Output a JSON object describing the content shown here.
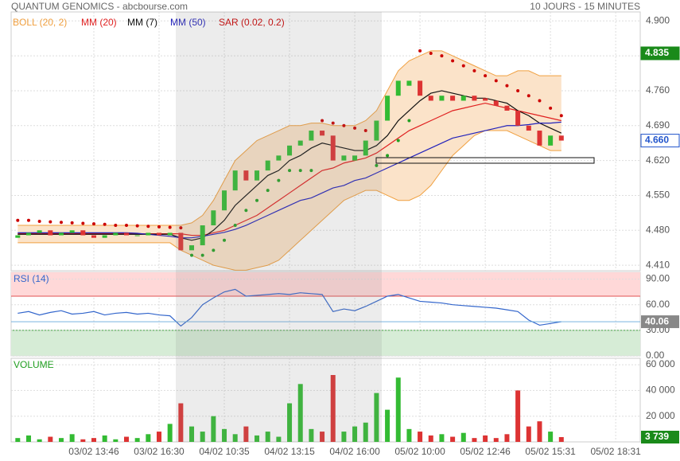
{
  "header": {
    "title": "QUANTUM GENOMICS - abcbourse.com",
    "period": "10 JOURS - 15 MINUTES"
  },
  "chart_data": [
    {
      "type": "candlestick",
      "up_color": "#33bb33",
      "down_color": "#dd3333",
      "open": [
        4.465,
        4.47,
        4.475,
        4.48,
        4.47,
        4.475,
        4.48,
        4.47,
        4.465,
        4.47,
        4.475,
        4.47,
        4.47,
        4.475,
        4.47,
        4.475,
        4.44,
        4.45,
        4.49,
        4.52,
        4.56,
        4.6,
        4.58,
        4.6,
        4.62,
        4.63,
        4.65,
        4.66,
        4.68,
        4.67,
        4.62,
        4.62,
        4.63,
        4.66,
        4.7,
        4.75,
        4.77,
        4.78,
        4.75,
        4.74,
        4.75,
        4.74,
        4.75,
        4.745,
        4.74,
        4.73,
        4.72,
        4.69,
        4.68,
        4.65,
        4.67,
        null,
        null,
        null,
        null,
        null,
        null
      ],
      "close": [
        4.47,
        4.475,
        4.48,
        4.47,
        4.475,
        4.48,
        4.47,
        4.465,
        4.47,
        4.475,
        4.47,
        4.47,
        4.475,
        4.47,
        4.475,
        4.44,
        4.45,
        4.49,
        4.52,
        4.56,
        4.6,
        4.58,
        4.6,
        4.62,
        4.63,
        4.65,
        4.66,
        4.68,
        4.67,
        4.62,
        4.63,
        4.63,
        4.66,
        4.7,
        4.75,
        4.78,
        4.78,
        4.75,
        4.74,
        4.75,
        4.74,
        4.75,
        4.74,
        4.74,
        4.73,
        4.72,
        4.69,
        4.68,
        4.65,
        4.67,
        4.66,
        null,
        null,
        null,
        null,
        null,
        null
      ],
      "bands": {
        "name": "BOLL (20, 2)",
        "color": "#f0a040",
        "fill": "#fbe3c9",
        "upper": [
          4.49,
          4.49,
          4.49,
          4.49,
          4.49,
          4.49,
          4.49,
          4.49,
          4.49,
          4.49,
          4.49,
          4.49,
          4.49,
          4.49,
          4.49,
          4.49,
          4.495,
          4.51,
          4.54,
          4.58,
          4.62,
          4.64,
          4.66,
          4.67,
          4.68,
          4.69,
          4.69,
          4.695,
          4.695,
          4.69,
          4.69,
          4.69,
          4.7,
          4.72,
          4.76,
          4.8,
          4.82,
          4.83,
          4.84,
          4.84,
          4.83,
          4.82,
          4.81,
          4.8,
          4.79,
          4.79,
          4.8,
          4.8,
          4.79,
          4.79,
          4.79,
          null,
          null,
          null,
          null,
          null,
          null
        ],
        "lower": [
          4.455,
          4.455,
          4.455,
          4.455,
          4.455,
          4.455,
          4.455,
          4.455,
          4.455,
          4.455,
          4.455,
          4.455,
          4.455,
          4.455,
          4.455,
          4.44,
          4.43,
          4.42,
          4.41,
          4.405,
          4.4,
          4.4,
          4.405,
          4.41,
          4.42,
          4.44,
          4.46,
          4.48,
          4.5,
          4.52,
          4.54,
          4.55,
          4.56,
          4.56,
          4.55,
          4.54,
          4.54,
          4.55,
          4.57,
          4.6,
          4.63,
          4.65,
          4.67,
          4.68,
          4.68,
          4.68,
          4.67,
          4.66,
          4.65,
          4.64,
          4.64,
          null,
          null,
          null,
          null,
          null,
          null
        ]
      },
      "series": [
        {
          "name": "MM (20)",
          "color": "#e02020",
          "values": [
            4.473,
            4.473,
            4.473,
            4.473,
            4.473,
            4.473,
            4.473,
            4.473,
            4.473,
            4.473,
            4.473,
            4.473,
            4.473,
            4.473,
            4.473,
            4.473,
            4.47,
            4.47,
            4.475,
            4.48,
            4.49,
            4.5,
            4.51,
            4.525,
            4.54,
            4.555,
            4.57,
            4.585,
            4.6,
            4.605,
            4.615,
            4.62,
            4.625,
            4.635,
            4.65,
            4.665,
            4.68,
            4.69,
            4.7,
            4.71,
            4.72,
            4.725,
            4.73,
            4.735,
            4.73,
            4.725,
            4.72,
            4.715,
            4.71,
            4.705,
            4.7,
            null,
            null,
            null,
            null,
            null,
            null
          ]
        },
        {
          "name": "MM (7)",
          "color": "#111111",
          "values": [
            4.472,
            4.472,
            4.472,
            4.472,
            4.472,
            4.472,
            4.472,
            4.472,
            4.472,
            4.472,
            4.472,
            4.472,
            4.472,
            4.472,
            4.472,
            4.465,
            4.46,
            4.465,
            4.48,
            4.5,
            4.53,
            4.55,
            4.57,
            4.59,
            4.6,
            4.62,
            4.63,
            4.645,
            4.655,
            4.65,
            4.645,
            4.64,
            4.64,
            4.65,
            4.67,
            4.7,
            4.72,
            4.74,
            4.755,
            4.76,
            4.755,
            4.75,
            4.745,
            4.745,
            4.74,
            4.735,
            4.72,
            4.71,
            4.695,
            4.685,
            4.675,
            null,
            null,
            null,
            null,
            null,
            null
          ]
        },
        {
          "name": "MM (50)",
          "color": "#2222bb",
          "values": [
            4.475,
            4.475,
            4.475,
            4.475,
            4.475,
            4.475,
            4.475,
            4.475,
            4.475,
            4.475,
            4.475,
            4.474,
            4.472,
            4.47,
            4.468,
            4.465,
            4.465,
            4.468,
            4.472,
            4.476,
            4.482,
            4.49,
            4.5,
            4.51,
            4.52,
            4.53,
            4.54,
            4.545,
            4.555,
            4.565,
            4.57,
            4.58,
            4.585,
            4.595,
            4.605,
            4.615,
            4.625,
            4.635,
            4.645,
            4.655,
            4.665,
            4.67,
            4.675,
            4.68,
            4.685,
            4.69,
            4.69,
            4.692,
            4.695,
            4.695,
            4.697,
            null,
            null,
            null,
            null,
            null,
            null
          ]
        }
      ],
      "sar": {
        "name": "SAR (0.02, 0.2)",
        "color": "#cc0000",
        "below_color": "#22a022",
        "values": [
          4.5,
          4.5,
          4.498,
          4.497,
          4.496,
          4.495,
          4.494,
          4.493,
          4.492,
          4.49,
          4.49,
          4.489,
          4.488,
          4.487,
          4.486,
          4.485,
          4.43,
          4.43,
          4.44,
          4.46,
          4.49,
          4.52,
          4.54,
          4.56,
          4.58,
          4.6,
          4.6,
          4.6,
          4.7,
          4.695,
          4.69,
          4.685,
          4.68,
          4.61,
          4.63,
          4.66,
          4.7,
          4.84,
          4.835,
          4.83,
          4.82,
          4.81,
          4.8,
          4.79,
          4.78,
          4.77,
          4.76,
          4.75,
          4.74,
          4.725,
          4.71,
          null,
          null,
          null,
          null,
          null,
          null
        ]
      },
      "tags": [
        {
          "value": 4.835,
          "label": "4.835",
          "color": "#1a8a1a"
        },
        {
          "value": 4.66,
          "label": "4.660",
          "color": "#2255cc"
        }
      ],
      "ylim": [
        4.399,
        4.918
      ],
      "yticks": [
        {
          "value": 4.41,
          "label": "4.410"
        },
        {
          "value": 4.48,
          "label": "4.480"
        },
        {
          "value": 4.55,
          "label": "4.550"
        },
        {
          "value": 4.62,
          "label": "4.620"
        },
        {
          "value": 4.69,
          "label": "4.690"
        },
        {
          "value": 4.76,
          "label": "4.760"
        },
        {
          "value": 4.83,
          "label": "4.830"
        },
        {
          "value": 4.9,
          "label": "4.900"
        }
      ],
      "grid": true
    },
    {
      "type": "line",
      "title": "RSI (14)",
      "color": "#3366cc",
      "values": [
        50,
        52,
        48,
        51,
        53,
        49,
        50,
        52,
        48,
        50,
        51,
        49,
        50,
        48,
        47,
        35,
        45,
        60,
        68,
        75,
        78,
        70,
        71,
        72,
        73,
        72,
        74,
        73,
        72,
        52,
        55,
        53,
        58,
        64,
        70,
        72,
        68,
        64,
        63,
        62,
        60,
        59,
        58,
        57,
        56,
        54,
        52,
        42,
        36,
        38,
        40.06,
        null,
        null,
        null,
        null,
        null,
        null
      ],
      "overbought": 70,
      "oversold": 30,
      "overbought_color": "#ffd8d8",
      "oversold_color": "#d6ecd6",
      "ylim": [
        0,
        98
      ],
      "yticks": [
        {
          "value": 0,
          "label": "0.00"
        },
        {
          "value": 30,
          "label": "30.00"
        },
        {
          "value": 60,
          "label": "60.00"
        },
        {
          "value": 90,
          "label": "90.00"
        }
      ],
      "grid": true
    },
    {
      "type": "bar",
      "title": "VOLUME",
      "values": [
        3000,
        5000,
        2000,
        4000,
        3000,
        6000,
        2000,
        3000,
        5000,
        2000,
        4000,
        3000,
        6000,
        8000,
        14000,
        30000,
        12000,
        8000,
        20000,
        10000,
        6000,
        12000,
        5000,
        8000,
        4000,
        30000,
        45000,
        10000,
        8000,
        52000,
        8000,
        12000,
        15000,
        38000,
        25000,
        50000,
        10000,
        8000,
        5000,
        6000,
        4000,
        7000,
        3000,
        5000,
        3000,
        6000,
        40000,
        12000,
        16000,
        8000,
        3739,
        null,
        null,
        null,
        null,
        null,
        null
      ],
      "last_value_label": "3 739",
      "categories": [
        null,
        null,
        null,
        null,
        null,
        null,
        null,
        "03/02 13:46",
        null,
        null,
        null,
        null,
        null,
        "03/02 16:30",
        null,
        null,
        null,
        null,
        null,
        "04/02 10:35",
        null,
        null,
        null,
        null,
        null,
        "04/02 13:15",
        null,
        null,
        null,
        null,
        null,
        "04/02 16:00",
        null,
        null,
        null,
        null,
        null,
        "05/02 10:00",
        null,
        null,
        null,
        null,
        null,
        "05/02 12:46",
        null,
        null,
        null,
        null,
        null,
        "05/02 15:31",
        null,
        null,
        null,
        null,
        null,
        "05/02 18:31",
        null
      ],
      "ylim": [
        0,
        65000
      ],
      "yticks": [
        {
          "value": 20000,
          "label": "20 000"
        },
        {
          "value": 40000,
          "label": "40 000"
        },
        {
          "value": 60000,
          "label": "60 000"
        }
      ],
      "grid": true
    }
  ]
}
